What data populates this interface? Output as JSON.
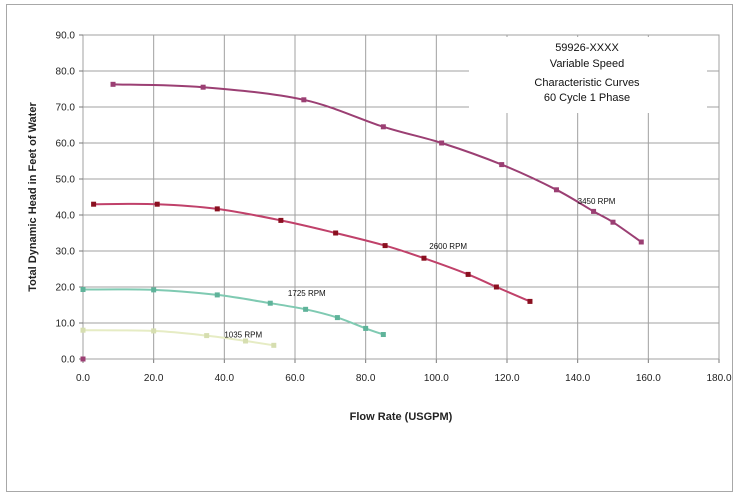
{
  "chart_data": {
    "type": "line",
    "title_lines": [
      "59926-XXXX",
      "Variable Speed",
      "Characteristic Curves",
      "60 Cycle 1 Phase"
    ],
    "xlabel": "Flow Rate (USGPM)",
    "ylabel": "Total Dynamic Head in Feet of Water",
    "xlim": [
      0,
      180
    ],
    "ylim": [
      0,
      90
    ],
    "xticks": [
      "0.0",
      "20.0",
      "40.0",
      "60.0",
      "80.0",
      "100.0",
      "120.0",
      "140.0",
      "160.0",
      "180.0"
    ],
    "yticks": [
      "0.0",
      "10.0",
      "20.0",
      "30.0",
      "40.0",
      "50.0",
      "60.0",
      "70.0",
      "80.0",
      "90.0"
    ],
    "grid": true,
    "series": [
      {
        "name": "3450 RPM",
        "color": "#9b3f73",
        "marker": "#9b3f73",
        "points": [
          [
            8.5,
            76.3
          ],
          [
            34,
            75.5
          ],
          [
            62.5,
            72
          ],
          [
            85,
            64.5
          ],
          [
            101.5,
            60
          ],
          [
            118.5,
            54
          ],
          [
            134,
            47
          ],
          [
            144.5,
            41
          ],
          [
            150,
            38
          ],
          [
            158,
            32.5
          ]
        ]
      },
      {
        "name": "2600 RPM",
        "color": "#c0416a",
        "marker": "#8a1020",
        "points": [
          [
            3,
            43
          ],
          [
            21,
            43
          ],
          [
            38,
            41.7
          ],
          [
            56,
            38.5
          ],
          [
            71.5,
            35
          ],
          [
            85.5,
            31.5
          ],
          [
            96.5,
            28
          ],
          [
            109,
            23.5
          ],
          [
            117,
            20
          ],
          [
            126.5,
            16
          ]
        ]
      },
      {
        "name": "1725 RPM",
        "color": "#7fcab2",
        "marker": "#5fb39a",
        "points": [
          [
            0,
            19.3
          ],
          [
            20,
            19.2
          ],
          [
            38,
            17.8
          ],
          [
            53,
            15.5
          ],
          [
            63,
            13.8
          ],
          [
            72,
            11.5
          ],
          [
            80,
            8.5
          ],
          [
            85,
            6.8
          ]
        ]
      },
      {
        "name": "1035 RPM",
        "color": "#e6ecc4",
        "marker": "#d6deb0",
        "points": [
          [
            0,
            8
          ],
          [
            20,
            7.8
          ],
          [
            35,
            6.5
          ],
          [
            46,
            5
          ],
          [
            54,
            3.8
          ]
        ]
      }
    ],
    "series_label_anchor": [
      [
        140,
        43
      ],
      [
        98,
        30.5
      ],
      [
        58,
        17.5
      ],
      [
        40,
        6
      ]
    ],
    "legend": "none"
  }
}
